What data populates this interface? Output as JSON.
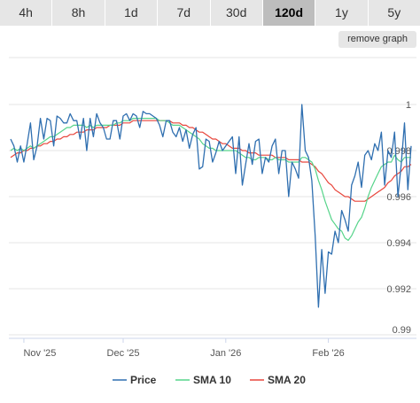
{
  "tabs": [
    "4h",
    "8h",
    "1d",
    "7d",
    "30d",
    "120d",
    "1y",
    "5y"
  ],
  "active_tab": "120d",
  "remove_graph_label": "remove graph",
  "colors": {
    "price": "#2f6fb0",
    "sma10": "#56d48a",
    "sma20": "#e8463c",
    "grid": "#e6e6e6"
  },
  "chart_data": {
    "type": "line",
    "title": "",
    "xlabel": "",
    "ylabel": "",
    "x_ticks": [
      "Nov '25",
      "Dec '25",
      "Jan '26",
      "Feb '26"
    ],
    "y_ticks": [
      "0.99",
      "0.992",
      "0.994",
      "0.996",
      "0.998",
      "1"
    ],
    "ylim": [
      0.99,
      1.0
    ],
    "grid": true,
    "legend_position": "bottom",
    "x_start": "2025-10-28",
    "series": [
      {
        "name": "Price",
        "values": [
          0.9985,
          0.9982,
          0.9975,
          0.9982,
          0.9975,
          0.9983,
          0.9992,
          0.9976,
          0.9982,
          0.9994,
          0.9985,
          0.9994,
          0.9993,
          0.9982,
          0.9995,
          0.9994,
          0.9992,
          0.9992,
          0.9996,
          0.9993,
          0.9993,
          0.9985,
          0.9994,
          0.998,
          0.9994,
          0.9986,
          0.9996,
          0.9992,
          0.999,
          0.9985,
          0.9985,
          0.9993,
          0.9993,
          0.9985,
          0.9995,
          0.9996,
          0.9993,
          0.9996,
          0.9995,
          0.999,
          0.9997,
          0.9996,
          0.9996,
          0.9995,
          0.9994,
          0.9991,
          0.9986,
          0.9993,
          0.9993,
          0.9988,
          0.9986,
          0.999,
          0.9984,
          0.9989,
          0.9981,
          0.9987,
          0.999,
          0.9972,
          0.9973,
          0.9985,
          0.9984,
          0.9975,
          0.9979,
          0.9984,
          0.998,
          0.9982,
          0.9984,
          0.9986,
          0.997,
          0.9986,
          0.9965,
          0.9974,
          0.9983,
          0.9974,
          0.9984,
          0.9985,
          0.997,
          0.9977,
          0.9975,
          0.9982,
          0.9985,
          0.997,
          0.998,
          0.998,
          0.996,
          0.9975,
          0.9972,
          0.9968,
          1.0,
          0.998,
          0.9977,
          0.9967,
          0.9943,
          0.9912,
          0.9937,
          0.9918,
          0.9936,
          0.9935,
          0.9945,
          0.994,
          0.9954,
          0.995,
          0.9945,
          0.9965,
          0.9969,
          0.9975,
          0.9964,
          0.9978,
          0.998,
          0.9976,
          0.9983,
          0.998,
          0.9988,
          0.9965,
          0.998,
          0.9977,
          0.9988,
          0.996,
          0.9974,
          0.9992,
          0.9963,
          0.9982
        ]
      },
      {
        "name": "SMA 10",
        "values": [
          0.998,
          0.9981,
          0.998,
          0.9981,
          0.998,
          0.9981,
          0.9982,
          0.9981,
          0.9982,
          0.9983,
          0.9984,
          0.9985,
          0.9986,
          0.9986,
          0.9987,
          0.9988,
          0.9989,
          0.999,
          0.999,
          0.9991,
          0.9991,
          0.9991,
          0.9991,
          0.999,
          0.9991,
          0.999,
          0.9991,
          0.9991,
          0.9991,
          0.9991,
          0.9991,
          0.9991,
          0.9992,
          0.9992,
          0.9993,
          0.9993,
          0.9993,
          0.9994,
          0.9994,
          0.9994,
          0.9994,
          0.9994,
          0.9994,
          0.9994,
          0.9994,
          0.9993,
          0.9993,
          0.9993,
          0.9992,
          0.9991,
          0.9991,
          0.9991,
          0.999,
          0.9989,
          0.9988,
          0.9987,
          0.9986,
          0.9985,
          0.9983,
          0.9982,
          0.9981,
          0.9981,
          0.998,
          0.998,
          0.998,
          0.998,
          0.998,
          0.998,
          0.998,
          0.9979,
          0.9978,
          0.9977,
          0.9977,
          0.9976,
          0.9976,
          0.9977,
          0.9977,
          0.9977,
          0.9976,
          0.9976,
          0.9977,
          0.9976,
          0.9976,
          0.9976,
          0.9975,
          0.9975,
          0.9975,
          0.9975,
          0.9977,
          0.9977,
          0.9976,
          0.9975,
          0.9972,
          0.9967,
          0.9963,
          0.9958,
          0.9954,
          0.995,
          0.9948,
          0.9946,
          0.9945,
          0.9942,
          0.9941,
          0.9943,
          0.9946,
          0.9949,
          0.9951,
          0.9955,
          0.996,
          0.9964,
          0.9967,
          0.997,
          0.9973,
          0.9974,
          0.9975,
          0.9975,
          0.9978,
          0.9976,
          0.9975,
          0.9977,
          0.9977,
          0.9977
        ]
      },
      {
        "name": "SMA 20",
        "values": [
          0.9977,
          0.9978,
          0.9979,
          0.9979,
          0.998,
          0.998,
          0.9981,
          0.9981,
          0.9982,
          0.9982,
          0.9983,
          0.9983,
          0.9984,
          0.9984,
          0.9985,
          0.9985,
          0.9986,
          0.9986,
          0.9987,
          0.9987,
          0.9988,
          0.9988,
          0.9988,
          0.9989,
          0.9989,
          0.9989,
          0.999,
          0.999,
          0.999,
          0.999,
          0.9991,
          0.9991,
          0.9991,
          0.9991,
          0.9992,
          0.9992,
          0.9992,
          0.9993,
          0.9993,
          0.9993,
          0.9993,
          0.9993,
          0.9993,
          0.9993,
          0.9993,
          0.9993,
          0.9993,
          0.9993,
          0.9993,
          0.9992,
          0.9992,
          0.9992,
          0.9991,
          0.9991,
          0.999,
          0.999,
          0.9989,
          0.9988,
          0.9988,
          0.9987,
          0.9986,
          0.9985,
          0.9985,
          0.9984,
          0.9983,
          0.9983,
          0.9982,
          0.9981,
          0.9981,
          0.9981,
          0.998,
          0.998,
          0.9979,
          0.9979,
          0.9979,
          0.9978,
          0.9978,
          0.9978,
          0.9978,
          0.9978,
          0.9977,
          0.9977,
          0.9977,
          0.9977,
          0.9976,
          0.9976,
          0.9976,
          0.9976,
          0.9975,
          0.9975,
          0.9975,
          0.9974,
          0.9973,
          0.9971,
          0.997,
          0.9968,
          0.9966,
          0.9965,
          0.9963,
          0.9962,
          0.9961,
          0.996,
          0.996,
          0.9959,
          0.9958,
          0.9958,
          0.9958,
          0.9958,
          0.9959,
          0.996,
          0.9961,
          0.9962,
          0.9963,
          0.9964,
          0.9966,
          0.9967,
          0.9969,
          0.997,
          0.9971,
          0.9973,
          0.9973,
          0.9974
        ]
      }
    ]
  }
}
